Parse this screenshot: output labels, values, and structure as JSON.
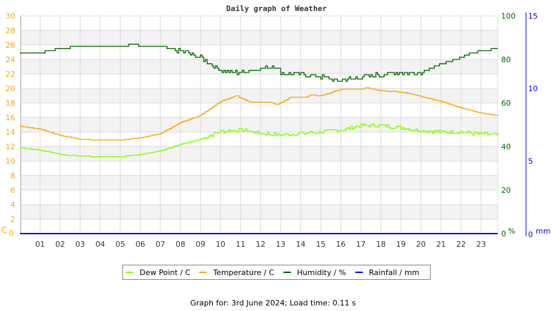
{
  "chart_data": {
    "type": "line",
    "title": "Daily graph of Weather",
    "x_tick_labels": [
      "01",
      "02",
      "03",
      "04",
      "05",
      "06",
      "07",
      "08",
      "09",
      "10",
      "11",
      "12",
      "13",
      "14",
      "15",
      "16",
      "17",
      "18",
      "19",
      "20",
      "21",
      "22",
      "23"
    ],
    "xlim": [
      0,
      24
    ],
    "grid": true,
    "legend_position": "bottom",
    "axes": {
      "left": {
        "label": "C",
        "ylim": [
          0,
          30
        ],
        "ticks": [
          0,
          2,
          4,
          6,
          8,
          10,
          12,
          14,
          16,
          18,
          20,
          22,
          24,
          26,
          28,
          30
        ],
        "color": "#FFA500"
      },
      "right1": {
        "label": "%",
        "ylim": [
          0,
          100
        ],
        "ticks": [
          0,
          20,
          40,
          60,
          80,
          100
        ],
        "color": "#006400"
      },
      "right2": {
        "label": "mm",
        "ylim": [
          0,
          15
        ],
        "ticks": [
          0,
          5,
          10,
          15
        ],
        "color": "#0000FF"
      }
    },
    "series": [
      {
        "name": "Dew Point / C",
        "axis": "left",
        "color": "#7FFF00",
        "x": [
          0,
          1,
          2,
          3,
          4,
          5,
          6,
          7,
          8,
          9,
          10,
          11,
          12,
          13,
          14,
          15,
          16,
          17,
          18,
          19,
          20,
          21,
          22,
          23,
          23.9
        ],
        "y": [
          11.8,
          11.5,
          10.9,
          10.7,
          10.6,
          10.6,
          10.9,
          11.4,
          12.3,
          13.0,
          14.1,
          14.3,
          13.8,
          13.6,
          13.8,
          14.0,
          14.3,
          14.9,
          14.9,
          14.6,
          14.2,
          14.0,
          14.0,
          13.7,
          13.6
        ]
      },
      {
        "name": "Temperature / C",
        "axis": "left",
        "color": "#FFA500",
        "x": [
          0,
          1,
          2,
          3,
          4,
          5,
          6,
          7,
          8,
          9,
          10,
          10.8,
          11.5,
          12.5,
          12.8,
          13.5,
          14.3,
          14.5,
          15,
          15.5,
          16,
          17,
          17.3,
          18,
          19,
          20,
          21,
          22,
          23,
          23.9
        ],
        "y": [
          14.8,
          14.4,
          13.5,
          13.0,
          12.9,
          12.9,
          13.2,
          13.8,
          15.3,
          16.3,
          18.2,
          19.0,
          18.1,
          18.1,
          17.7,
          18.8,
          18.8,
          19.1,
          19.0,
          19.4,
          19.9,
          19.9,
          20.1,
          19.7,
          19.5,
          18.9,
          18.2,
          17.3,
          16.6,
          16.2
        ]
      },
      {
        "name": "Humidity / %",
        "axis": "right1",
        "color": "#006400",
        "x": [
          0,
          1,
          1.5,
          2,
          3,
          4,
          5,
          5.7,
          6,
          7,
          7.5,
          8,
          9,
          10,
          10.5,
          11,
          12,
          12.7,
          13,
          14,
          15,
          15.8,
          16.5,
          17,
          18,
          19,
          20,
          20.5,
          21,
          22,
          22.5,
          23,
          23.9
        ],
        "y": [
          83,
          83,
          84,
          85,
          86,
          86,
          86,
          87,
          86,
          86,
          85,
          84,
          81,
          75,
          74,
          74,
          76,
          77,
          74,
          73,
          72,
          70,
          71,
          72,
          73,
          74,
          74,
          76,
          78,
          81,
          83,
          84,
          85
        ]
      },
      {
        "name": "Rainfall / mm",
        "axis": "right2",
        "color": "#0000FF",
        "x": [
          0,
          24
        ],
        "y": [
          0,
          0
        ]
      }
    ]
  },
  "footer": "Graph for: 3rd June 2024; Load time: 0.11 s"
}
